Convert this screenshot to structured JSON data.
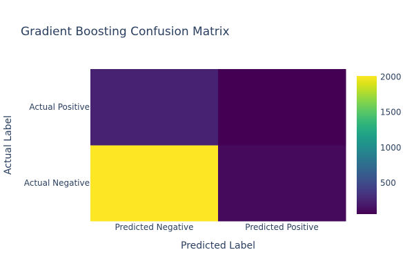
{
  "chart_data": {
    "type": "heatmap",
    "title": "Gradient Boosting Confusion Matrix",
    "xlabel": "Predicted Label",
    "ylabel": "Actual Label",
    "x_categories": [
      "Predicted Negative",
      "Predicted Positive"
    ],
    "y_categories": [
      "Actual Negative",
      "Actual Positive"
    ],
    "z": [
      [
        2015,
        110
      ],
      [
        240,
        60
      ]
    ],
    "colorscale": "Viridis",
    "zmin": 60,
    "zmax": 2015,
    "colorbar_ticks": [
      500,
      1000,
      1500,
      2000
    ],
    "colorbar_tick_labels": [
      "500",
      "1000",
      "1500",
      "2000"
    ]
  }
}
